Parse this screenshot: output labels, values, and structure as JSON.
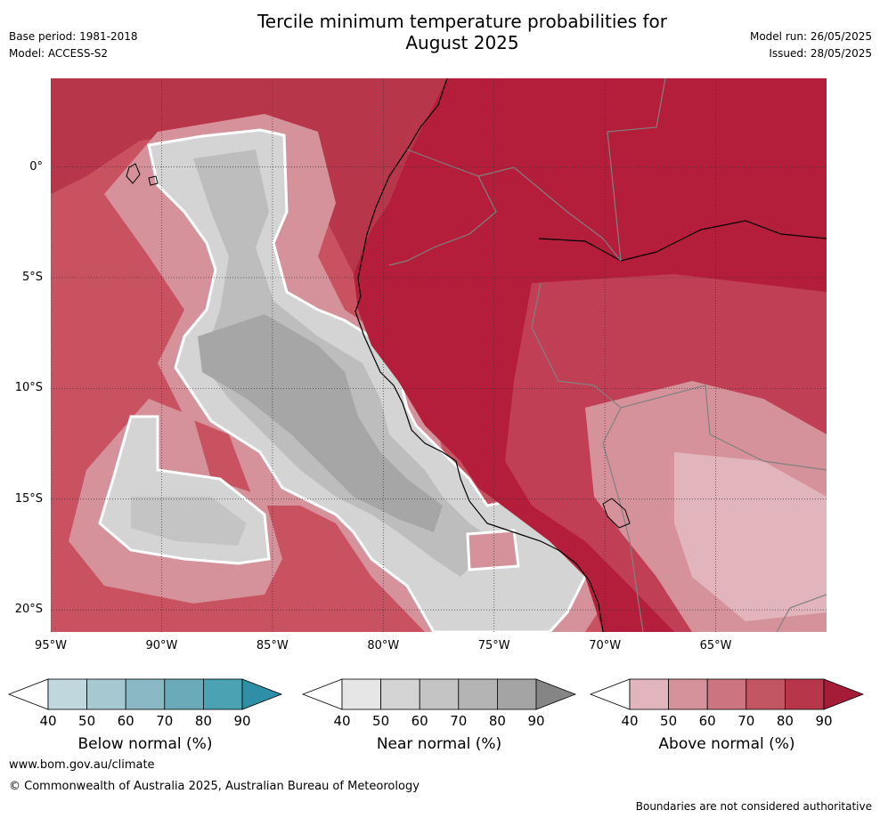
{
  "header": {
    "title_line1": "Tercile minimum temperature probabilities for",
    "title_line2": "August 2025",
    "base_period": "Base period: 1981-2018",
    "model": "Model: ACCESS-S2",
    "model_run": "Model run: 26/05/2025",
    "issued": "Issued: 28/05/2025"
  },
  "map": {
    "longitude_labels": [
      "95°W",
      "90°W",
      "85°W",
      "80°W",
      "75°W",
      "70°W",
      "65°W"
    ],
    "longitude_values": [
      -95,
      -90,
      -85,
      -80,
      -75,
      -70,
      -65
    ],
    "latitude_labels": [
      "0°",
      "5°S",
      "10°S",
      "15°S",
      "20°S"
    ],
    "latitude_values": [
      0,
      -5,
      -10,
      -15,
      -20
    ],
    "lon_range": [
      -95,
      -60
    ],
    "lat_range": [
      -21,
      4
    ],
    "gridlines": true,
    "colors": {
      "ocean_base": "#c8525f",
      "land_base": "#b41e3a",
      "near_normal_fill": "#d4d4d4",
      "near_normal_dark": "#a6a6a6",
      "coastline": "#000000",
      "boundary": "#808080"
    }
  },
  "colorbars": [
    {
      "title": "Below normal (%)",
      "labels": [
        "40",
        "50",
        "60",
        "70",
        "80",
        "90"
      ],
      "colors": [
        "#ffffff",
        "#bfd7dd",
        "#a6c9d1",
        "#8ab8c4",
        "#6babb9",
        "#4aa2b2",
        "#2e8fa6"
      ]
    },
    {
      "title": "Near normal (%)",
      "labels": [
        "40",
        "50",
        "60",
        "70",
        "80",
        "90"
      ],
      "colors": [
        "#ffffff",
        "#e6e6e6",
        "#d4d4d4",
        "#c4c4c4",
        "#b4b4b4",
        "#a4a4a4",
        "#858585"
      ]
    },
    {
      "title": "Above normal (%)",
      "labels": [
        "40",
        "50",
        "60",
        "70",
        "80",
        "90"
      ],
      "colors": [
        "#ffffff",
        "#e1b5bb",
        "#d6929b",
        "#cc747f",
        "#c25663",
        "#b7364a",
        "#a51c38"
      ]
    }
  ],
  "footer": {
    "url": "www.bom.gov.au/climate",
    "copyright": "© Commonwealth of Australia 2025, Australian Bureau of Meteorology",
    "note": "Boundaries are not considered authoritative"
  }
}
